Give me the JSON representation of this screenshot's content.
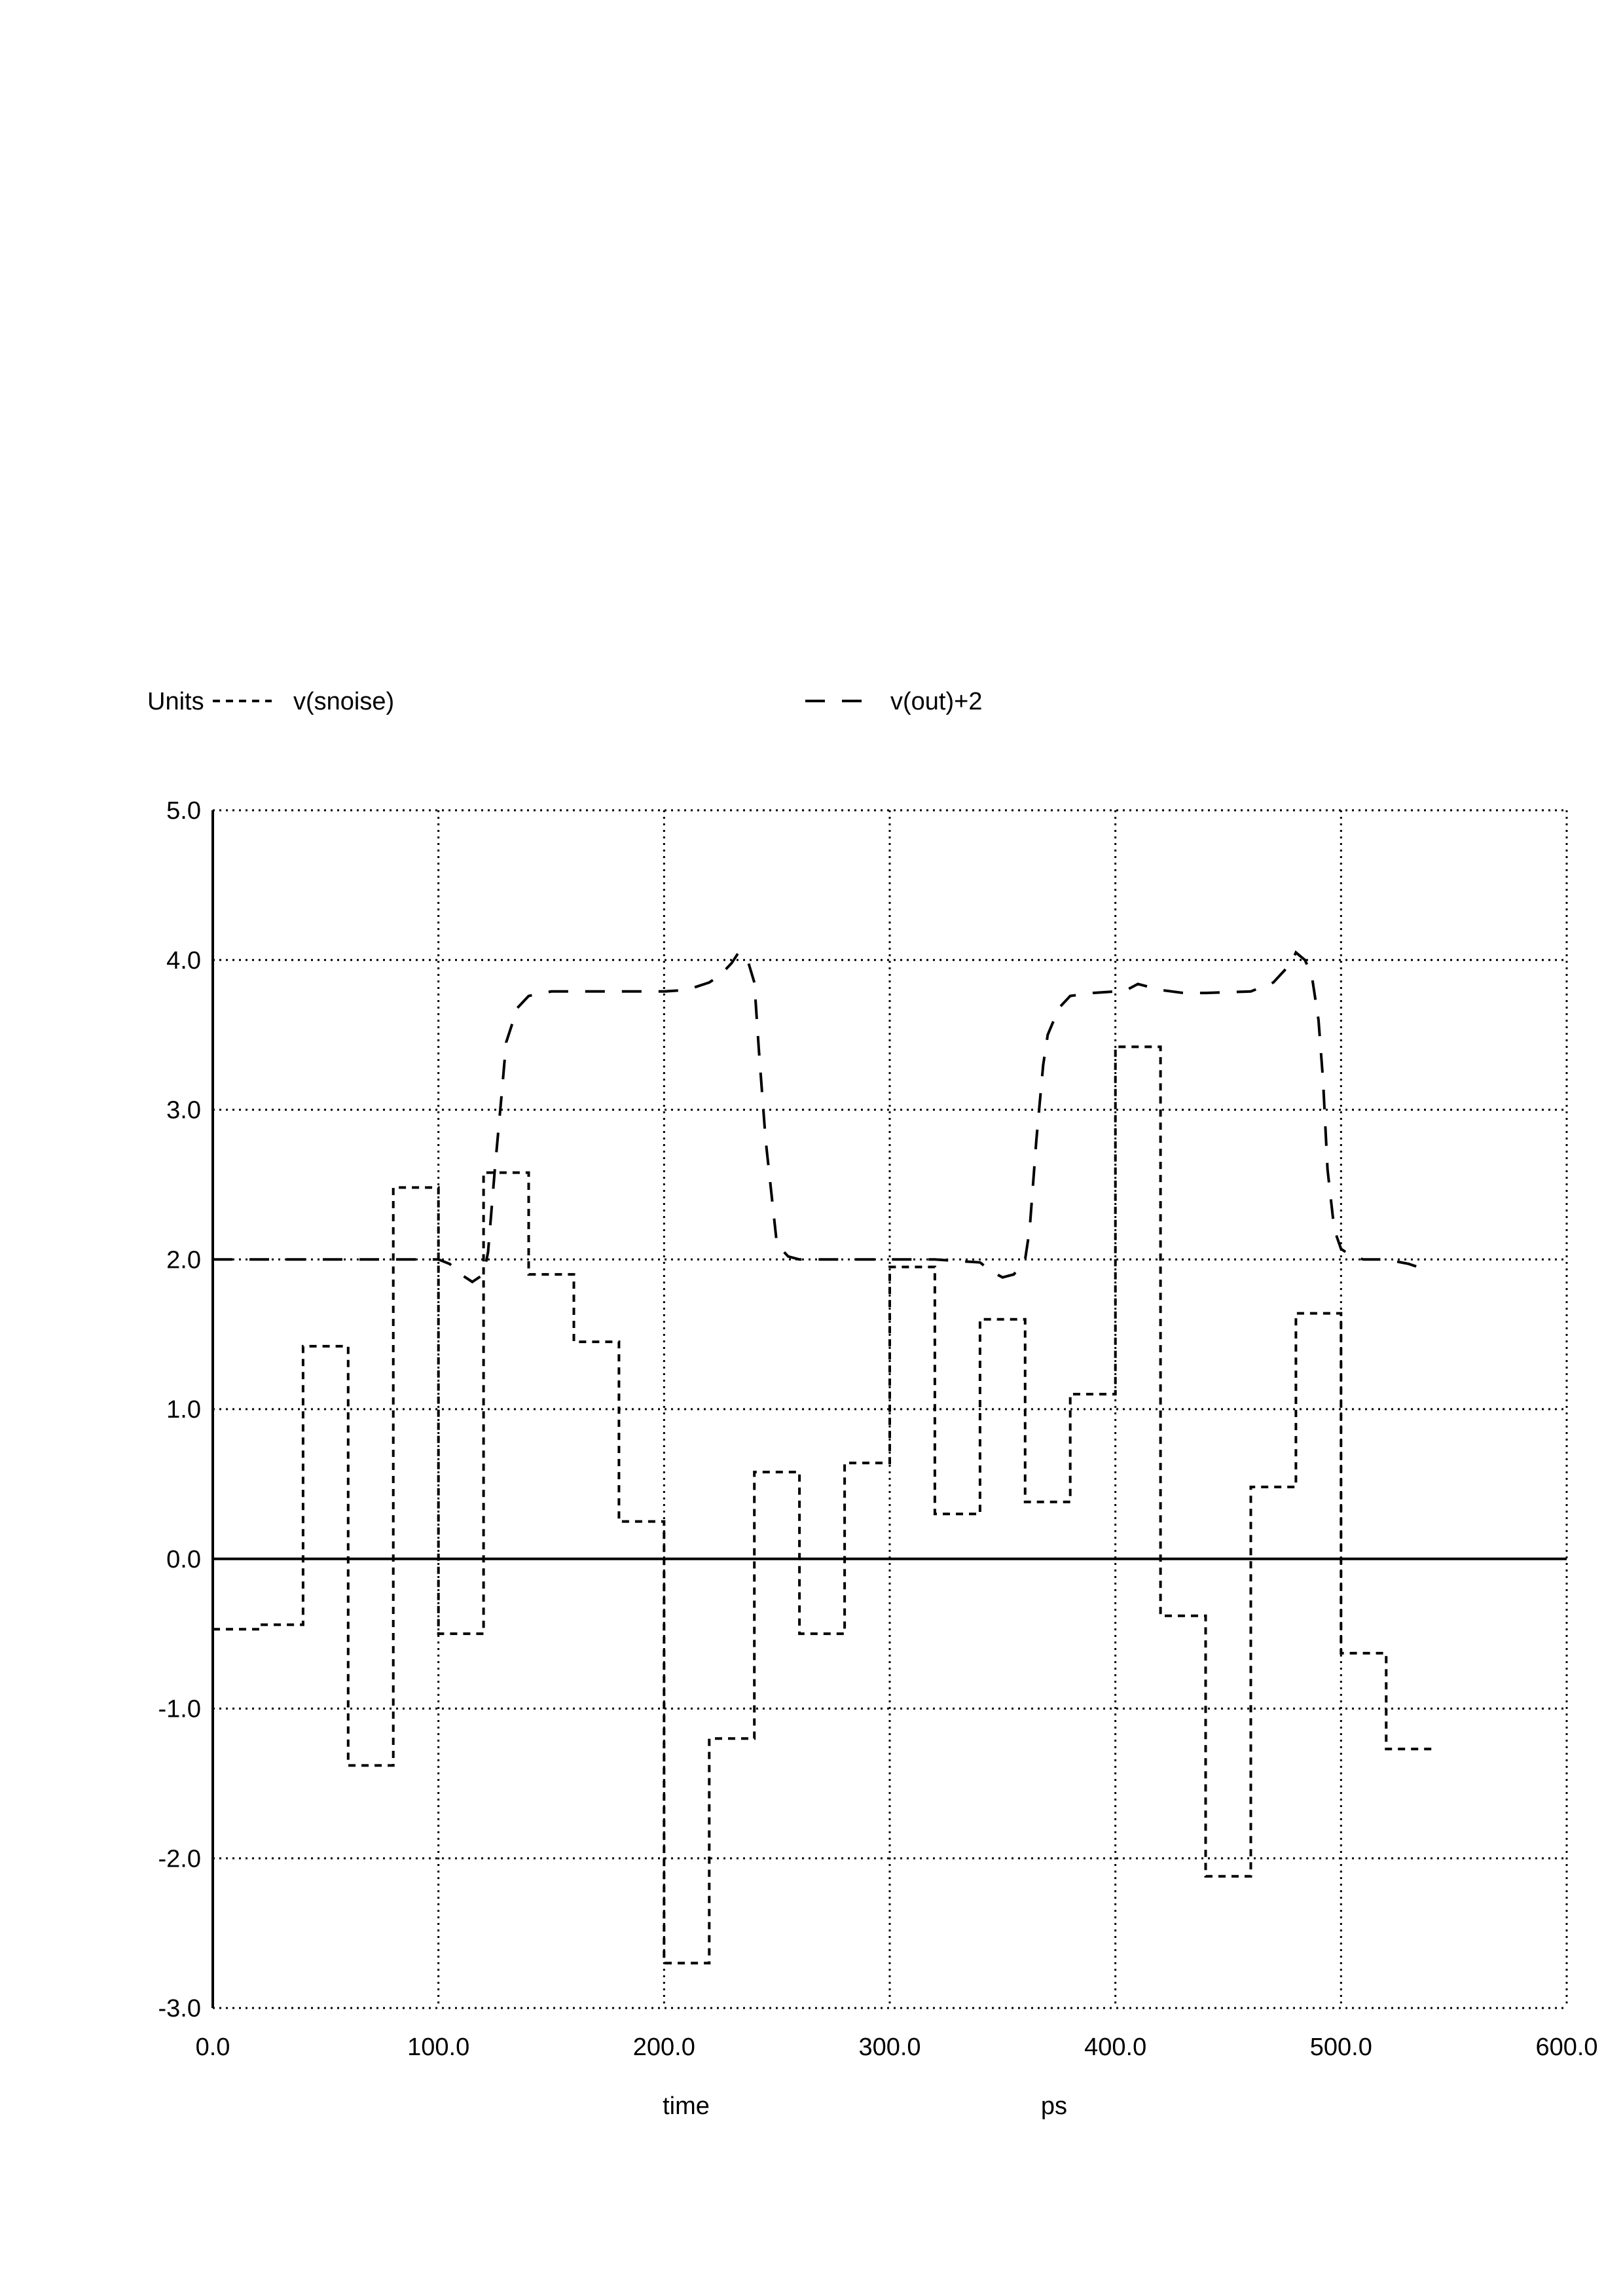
{
  "chart_data": {
    "type": "line",
    "units_label": "Units",
    "xlabel": "time",
    "xunit": "ps",
    "xlim": [
      0,
      600
    ],
    "ylim": [
      -3,
      5
    ],
    "grid": true,
    "legend_position": "top",
    "x_ticks": [
      0,
      100,
      200,
      300,
      400,
      500,
      600
    ],
    "x_tick_labels": [
      "0.0",
      "100.0",
      "200.0",
      "300.0",
      "400.0",
      "500.0",
      "600.0"
    ],
    "y_ticks": [
      -3,
      -2,
      -1,
      0,
      1,
      2,
      3,
      4,
      5
    ],
    "y_tick_labels": [
      "-3.0",
      "-2.0",
      "-1.0",
      "0.0",
      "1.0",
      "2.0",
      "3.0",
      "4.0",
      "5.0"
    ],
    "series": [
      {
        "name": "v(snoise)",
        "style": "short-dash",
        "x": [
          0,
          20,
          20,
          40,
          40,
          60,
          60,
          80,
          80,
          100,
          100,
          120,
          120,
          140,
          140,
          160,
          160,
          180,
          180,
          200,
          200,
          220,
          220,
          240,
          240,
          260,
          260,
          280,
          280,
          300,
          300,
          320,
          320,
          340,
          340,
          360,
          360,
          380,
          380,
          400,
          400,
          420,
          420,
          440,
          440,
          460,
          460,
          480,
          480,
          500,
          500,
          520,
          520,
          540
        ],
        "y": [
          -0.47,
          -0.47,
          -0.44,
          -0.44,
          1.42,
          1.42,
          -1.38,
          -1.38,
          2.48,
          2.48,
          -0.5,
          -0.5,
          2.58,
          2.58,
          1.9,
          1.9,
          1.45,
          1.45,
          0.25,
          0.25,
          -2.7,
          -2.7,
          -1.2,
          -1.2,
          0.58,
          0.58,
          -0.5,
          -0.5,
          0.64,
          0.64,
          1.95,
          1.95,
          0.3,
          0.3,
          1.6,
          1.6,
          0.38,
          0.38,
          1.1,
          1.1,
          3.42,
          3.42,
          -0.38,
          -0.38,
          -2.12,
          -2.12,
          0.48,
          0.48,
          1.64,
          1.64,
          -0.63,
          -0.63,
          -1.27,
          -1.27
        ]
      },
      {
        "name": "v(out)+2",
        "style": "long-dash",
        "x": [
          0,
          50,
          100,
          105,
          110,
          115,
          120,
          122,
          125,
          128,
          130,
          135,
          140,
          150,
          180,
          200,
          210,
          220,
          225,
          230,
          233,
          237,
          240,
          242,
          245,
          250,
          255,
          260,
          270,
          280,
          300,
          320,
          340,
          345,
          350,
          355,
          360,
          362,
          365,
          368,
          370,
          375,
          380,
          390,
          400,
          405,
          410,
          415,
          420,
          430,
          440,
          460,
          470,
          478,
          480,
          484,
          487,
          490,
          492,
          494,
          497,
          500,
          505,
          510,
          520,
          530,
          540
        ],
        "y": [
          2.0,
          2.0,
          2.0,
          1.97,
          1.9,
          1.85,
          1.9,
          2.05,
          2.6,
          3.1,
          3.45,
          3.68,
          3.76,
          3.79,
          3.79,
          3.79,
          3.8,
          3.85,
          3.9,
          3.98,
          4.05,
          4.0,
          3.85,
          3.4,
          2.8,
          2.1,
          2.02,
          2.0,
          2.0,
          2.0,
          2.0,
          2.0,
          1.98,
          1.92,
          1.88,
          1.9,
          2.0,
          2.2,
          2.8,
          3.3,
          3.5,
          3.68,
          3.76,
          3.78,
          3.79,
          3.8,
          3.84,
          3.82,
          3.8,
          3.78,
          3.78,
          3.79,
          3.85,
          3.98,
          4.05,
          4.0,
          3.9,
          3.6,
          3.2,
          2.6,
          2.2,
          2.07,
          2.02,
          2.0,
          2.0,
          1.97,
          1.92
        ]
      }
    ]
  }
}
